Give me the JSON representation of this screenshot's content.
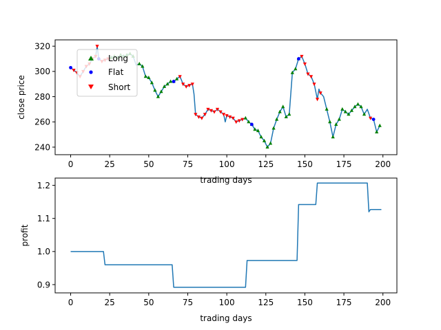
{
  "colors": {
    "line": "#1f77b4",
    "long": "#008000",
    "flat": "#0000ff",
    "short": "#ff0000",
    "axis": "#000000",
    "legend_border": "#cccccc"
  },
  "chart_data": [
    {
      "type": "line",
      "xlabel": "trading days",
      "ylabel": "close price",
      "xlim": [
        -9.95,
        208.95
      ],
      "ylim": [
        234,
        325
      ],
      "x_ticks": [
        0,
        25,
        50,
        75,
        100,
        125,
        150,
        175,
        200
      ],
      "y_ticks": [
        240,
        260,
        280,
        300,
        320
      ],
      "grid": false,
      "legend": {
        "position": "upper-left",
        "entries": [
          {
            "label": "Long",
            "marker": "triangle-up",
            "color": "#008000"
          },
          {
            "label": "Flat",
            "marker": "circle",
            "color": "#0000ff"
          },
          {
            "label": "Short",
            "marker": "triangle-down",
            "color": "#ff0000"
          }
        ]
      },
      "series": [
        {
          "x": [
            0,
            2,
            4,
            6,
            8,
            10,
            12,
            14,
            16,
            17,
            18,
            20,
            22,
            24,
            26,
            28,
            30,
            32,
            34,
            36,
            38,
            40,
            42,
            44,
            46,
            48,
            50,
            52,
            54,
            56,
            58,
            60,
            62,
            64,
            66,
            68,
            70,
            72,
            74,
            76,
            78,
            79,
            80,
            82,
            84,
            86,
            88,
            90,
            92,
            94,
            96,
            98,
            99,
            100,
            102,
            104,
            106,
            108,
            110,
            112,
            114,
            116,
            118,
            120,
            122,
            124,
            126,
            128,
            130,
            132,
            134,
            136,
            138,
            140,
            142,
            144,
            146,
            148,
            150,
            152,
            154,
            156,
            158,
            159,
            160,
            162,
            164,
            166,
            168,
            170,
            172,
            174,
            176,
            178,
            180,
            182,
            184,
            186,
            188,
            190,
            192,
            194,
            196,
            198
          ],
          "y": [
            303,
            301,
            299,
            296,
            300,
            304,
            306,
            310,
            312,
            320,
            310,
            308,
            309,
            310,
            311,
            312,
            311,
            313,
            312,
            313,
            314,
            312,
            305,
            306,
            304,
            296,
            295,
            291,
            285,
            280,
            284,
            288,
            290,
            292,
            292,
            294,
            296,
            290,
            288,
            289,
            290,
            282,
            266,
            264,
            263,
            266,
            270,
            269,
            268,
            270,
            268,
            266,
            260,
            265,
            264,
            263,
            260,
            261,
            262,
            263,
            260,
            258,
            254,
            253,
            248,
            245,
            240,
            243,
            255,
            262,
            268,
            272,
            264,
            266,
            299,
            302,
            310,
            312,
            306,
            298,
            296,
            290,
            278,
            286,
            283,
            280,
            270,
            260,
            248,
            258,
            262,
            270,
            268,
            266,
            269,
            272,
            274,
            272,
            266,
            270,
            263,
            262,
            252,
            257
          ]
        }
      ],
      "markers": {
        "long_x": [
          26,
          28,
          30,
          32,
          34,
          36,
          38,
          40,
          44,
          46,
          48,
          50,
          52,
          54,
          56,
          58,
          60,
          62,
          64,
          66,
          68,
          112,
          114,
          116,
          118,
          120,
          122,
          124,
          126,
          128,
          130,
          132,
          134,
          136,
          138,
          140,
          142,
          144,
          146,
          164,
          166,
          168,
          170,
          172,
          174,
          176,
          178,
          180,
          182,
          184,
          186,
          188,
          196,
          198
        ],
        "flat_x": [
          0,
          18,
          66,
          116,
          146,
          194
        ],
        "short_x": [
          2,
          4,
          6,
          8,
          10,
          12,
          14,
          16,
          17,
          20,
          22,
          24,
          70,
          72,
          74,
          76,
          78,
          80,
          82,
          84,
          86,
          88,
          90,
          92,
          94,
          96,
          98,
          100,
          102,
          104,
          106,
          108,
          110,
          148,
          150,
          152,
          154,
          156,
          158,
          160,
          192
        ]
      }
    },
    {
      "type": "line",
      "xlabel": "trading days",
      "ylabel": "profit",
      "xlim": [
        -9.95,
        208.95
      ],
      "ylim": [
        0.875,
        1.222
      ],
      "x_ticks": [
        0,
        25,
        50,
        75,
        100,
        125,
        150,
        175,
        200
      ],
      "y_ticks": [
        0.9,
        1.0,
        1.1,
        1.2
      ],
      "grid": false,
      "series": [
        {
          "x": [
            0,
            21,
            22,
            65,
            66,
            112,
            113,
            145,
            146,
            157,
            158,
            190,
            191,
            192,
            199
          ],
          "y": [
            1.0,
            1.0,
            0.96,
            0.96,
            0.892,
            0.892,
            0.973,
            0.973,
            1.142,
            1.142,
            1.207,
            1.207,
            1.12,
            1.127,
            1.127
          ]
        }
      ]
    }
  ]
}
